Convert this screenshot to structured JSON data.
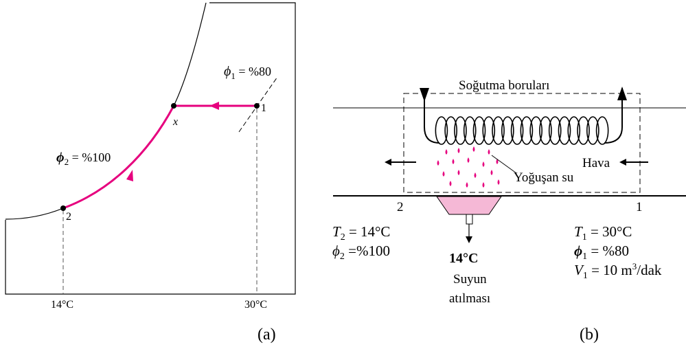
{
  "colors": {
    "accent": "#e6007e",
    "water_fill": "#f5b8d6",
    "line": "#000000",
    "dash": "#555555"
  },
  "panel_a": {
    "label": "(a)",
    "phi1_label": "ϕ",
    "phi1_sub": "1",
    "phi1_value": " = %80",
    "phi2_label": "ϕ",
    "phi2_sub": "2",
    "phi2_value": " = %100",
    "point_1": "1",
    "point_x": "x",
    "point_2": "2",
    "temp_left": "14°C",
    "temp_right": "30°C"
  },
  "panel_b": {
    "label": "(b)",
    "coil_label": "Soğutma boruları",
    "air_label": "Hava",
    "condensate_label": "Yoğuşan su",
    "station_2": "2",
    "station_1": "1",
    "left_state": {
      "t_sym": "T",
      "t_sub": "2",
      "t_val": " = 14°C",
      "phi_sym": "ϕ",
      "phi_sub": "2",
      "phi_val": " =%100"
    },
    "right_state": {
      "t_sym": "T",
      "t_sub": "1",
      "t_val": " = 30°C",
      "phi_sym": "ϕ",
      "phi_sub": "1",
      "phi_val": " = %80",
      "v_sym": "V",
      "v_dot": "˙",
      "v_sub": "1",
      "v_val": " = 10 m",
      "v_sup": "3",
      "v_unit": "/dak"
    },
    "drain_temp": "14°C",
    "drain_line1": "Suyun",
    "drain_line2": "atılması"
  }
}
